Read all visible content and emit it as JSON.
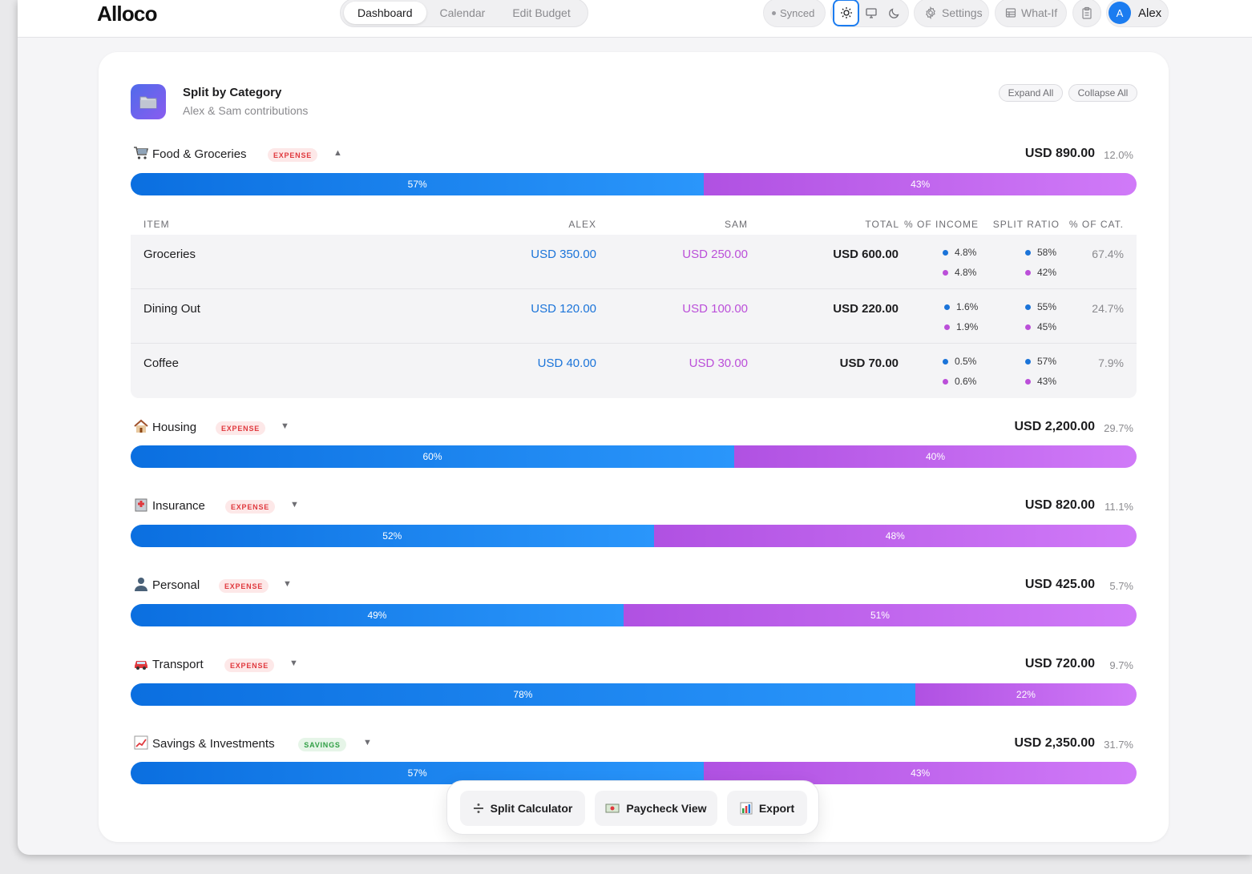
{
  "app": {
    "title": "Alloco"
  },
  "nav": {
    "tabs": [
      "Dashboard",
      "Calendar",
      "Edit Budget"
    ],
    "active": "Dashboard"
  },
  "toolbar": {
    "sync_status": "Synced",
    "settings_label": "Settings",
    "whatif_label": "What-If",
    "user_initial": "A",
    "user_name": "Alex"
  },
  "split": {
    "title": "Split by Category",
    "subtitle": "Alex & Sam contributions",
    "expand_all": "Expand All",
    "collapse_all": "Collapse All",
    "table_headers": [
      "ITEM",
      "ALEX",
      "SAM",
      "TOTAL",
      "% OF INCOME",
      "SPLIT RATIO",
      "% OF CAT."
    ],
    "categories": [
      {
        "icon": "cart-icon",
        "name": "Food & Groceries",
        "badge": "EXPENSE",
        "chevron": "▲",
        "amount": "USD 890.00",
        "pct": "12.0%",
        "alex_pct": 57,
        "sam_pct": 43,
        "alex_label": "57%",
        "sam_label": "43%",
        "items": [
          {
            "name": "Groceries",
            "alex": "USD 350.00",
            "sam": "USD 250.00",
            "total": "USD 600.00",
            "income_alex": "4.8%",
            "income_sam": "4.8%",
            "ratio_alex": "58%",
            "ratio_sam": "42%",
            "pct_cat": "67.4%"
          },
          {
            "name": "Dining Out",
            "alex": "USD 120.00",
            "sam": "USD 100.00",
            "total": "USD 220.00",
            "income_alex": "1.6%",
            "income_sam": "1.9%",
            "ratio_alex": "55%",
            "ratio_sam": "45%",
            "pct_cat": "24.7%"
          },
          {
            "name": "Coffee",
            "alex": "USD 40.00",
            "sam": "USD 30.00",
            "total": "USD 70.00",
            "income_alex": "0.5%",
            "income_sam": "0.6%",
            "ratio_alex": "57%",
            "ratio_sam": "43%",
            "pct_cat": "7.9%"
          }
        ]
      },
      {
        "icon": "house-icon",
        "name": "Housing",
        "badge": "EXPENSE",
        "chevron": "▼",
        "amount": "USD 2,200.00",
        "pct": "29.7%",
        "alex_pct": 60,
        "sam_pct": 40,
        "alex_label": "60%",
        "sam_label": "40%"
      },
      {
        "icon": "hospital-icon",
        "name": "Insurance",
        "badge": "EXPENSE",
        "chevron": "▼",
        "amount": "USD 820.00",
        "pct": "11.1%",
        "alex_pct": 52,
        "sam_pct": 48,
        "alex_label": "52%",
        "sam_label": "48%"
      },
      {
        "icon": "person-icon",
        "name": "Personal",
        "badge": "EXPENSE",
        "chevron": "▼",
        "amount": "USD 425.00",
        "pct": "5.7%",
        "alex_pct": 49,
        "sam_pct": 51,
        "alex_label": "49%",
        "sam_label": "51%"
      },
      {
        "icon": "car-icon",
        "name": "Transport",
        "badge": "EXPENSE",
        "chevron": "▼",
        "amount": "USD 720.00",
        "pct": "9.7%",
        "alex_pct": 78,
        "sam_pct": 22,
        "alex_label": "78%",
        "sam_label": "22%"
      },
      {
        "icon": "chart-up-icon",
        "name": "Savings & Investments",
        "badge": "SAVINGS",
        "chevron": "▼",
        "amount": "USD 2,350.00",
        "pct": "31.7%",
        "alex_pct": 57,
        "sam_pct": 43,
        "alex_label": "57%",
        "sam_label": "43%"
      }
    ]
  },
  "actions": {
    "split_calculator": "Split Calculator",
    "paycheck_view": "Paycheck View",
    "export": "Export"
  },
  "colors": {
    "alex": "#1b74d9",
    "sam": "#bb4fd9",
    "accent": "#1b7cf0"
  }
}
